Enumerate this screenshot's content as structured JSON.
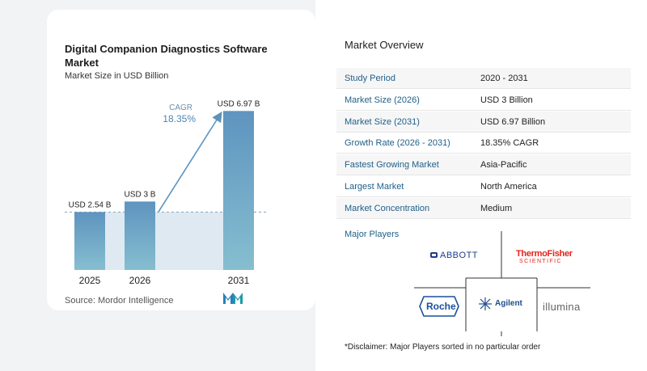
{
  "chart_data": {
    "type": "bar",
    "title": "Digital Companion Diagnostics Software Market",
    "subtitle": "Market Size in USD Billion",
    "categories": [
      "2025",
      "2026",
      "2031"
    ],
    "values": [
      2.54,
      3,
      6.97
    ],
    "data_labels": [
      "USD 2.54 B",
      "USD 3 B",
      "USD 6.97 B"
    ],
    "cagr_label": "CAGR",
    "cagr_value": "18.35%",
    "bar_color": "#6b9fc2",
    "ylim": [
      0,
      7.3
    ]
  },
  "source": "Source:  Mordor Intelligence",
  "overview": {
    "title": "Market Overview",
    "rows": [
      {
        "key": "Study Period",
        "value": "2020 - 2031"
      },
      {
        "key": "Market Size (2026)",
        "value": "USD 3 Billion"
      },
      {
        "key": "Market Size (2031)",
        "value": "USD 6.97 Billion"
      },
      {
        "key": "Growth Rate (2026 - 2031)",
        "value": "18.35% CAGR"
      },
      {
        "key": "Fastest Growing Market",
        "value": "Asia-Pacific"
      },
      {
        "key": "Largest Market",
        "value": "North America"
      },
      {
        "key": "Market Concentration",
        "value": "Medium"
      }
    ]
  },
  "players": {
    "title": "Major Players",
    "logos": [
      "ABBOTT",
      "ThermoFisher",
      "SCIENTIFIC",
      "Roche",
      "Agilent",
      "illumina"
    ]
  },
  "disclaimer": "*Disclaimer: Major Players sorted in no particular order",
  "colors": {
    "accent": "#1f5f86",
    "bar": "#6b9fc2",
    "arrow": "#5b93bd"
  }
}
